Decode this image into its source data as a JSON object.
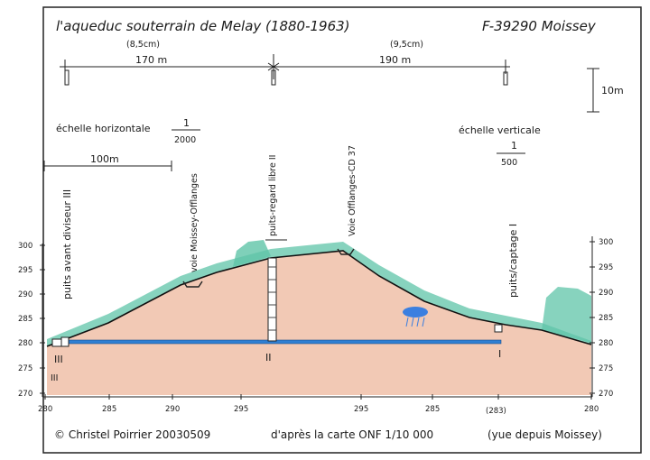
{
  "title": "l'aqueduc souterrain de Melay (1880-1963)",
  "location": "F-39290 Moissey",
  "dimension_top": {
    "left_length": "170 m",
    "left_length_note": "(8,5cm)",
    "right_length": "190 m",
    "right_length_note": "(9,5cm)",
    "vertical_10m": "10m"
  },
  "scales": {
    "horizontal_label": "échelle horizontale",
    "horizontal_num": "1",
    "horizontal_den": "2000",
    "bar_label": "100m",
    "vertical_label": "échelle verticale",
    "vertical_num": "1",
    "vertical_den": "500"
  },
  "features": {
    "puits_avant_diviseur": "puits avant diviseur III",
    "voie_moissey": "voie Moissey-Offlanges",
    "puits_regard": "puits-regard libre II",
    "voie_offlanges": "Voie Offlanges-CD 37",
    "puits_captage": "puits/captage I"
  },
  "roman_numerals": {
    "three": "III",
    "two": "II",
    "one": "I"
  },
  "left_axis": [
    "300",
    "295",
    "290",
    "285",
    "280",
    "275",
    "270"
  ],
  "right_axis": [
    "300",
    "295",
    "290",
    "285",
    "280",
    "275",
    "270"
  ],
  "bottom_axis": [
    "280",
    "285",
    "290",
    "295",
    "295",
    "285",
    "(283)",
    "280"
  ],
  "footer": {
    "author": "© Christel Poirrier 20030509",
    "source": "d'après la carte ONF 1/10 000",
    "view": "(yue depuis Moissey)"
  },
  "colors": {
    "ground": "#f2c9b5",
    "grass": "#5fc4a8",
    "pipe": "#2f7fd3",
    "water": "#3b7fe0"
  }
}
